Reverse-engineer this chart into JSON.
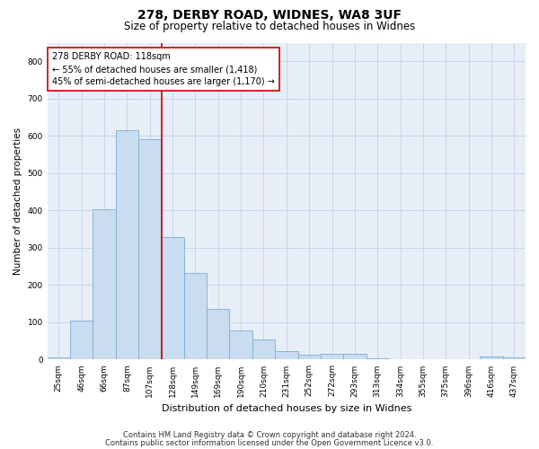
{
  "title_line1": "278, DERBY ROAD, WIDNES, WA8 3UF",
  "title_line2": "Size of property relative to detached houses in Widnes",
  "xlabel": "Distribution of detached houses by size in Widnes",
  "ylabel": "Number of detached properties",
  "footer_line1": "Contains HM Land Registry data © Crown copyright and database right 2024.",
  "footer_line2": "Contains public sector information licensed under the Open Government Licence v3.0.",
  "categories": [
    "25sqm",
    "46sqm",
    "66sqm",
    "87sqm",
    "107sqm",
    "128sqm",
    "149sqm",
    "169sqm",
    "190sqm",
    "210sqm",
    "231sqm",
    "252sqm",
    "272sqm",
    "293sqm",
    "313sqm",
    "334sqm",
    "355sqm",
    "375sqm",
    "396sqm",
    "416sqm",
    "437sqm"
  ],
  "values": [
    5,
    105,
    403,
    614,
    590,
    328,
    233,
    135,
    77,
    53,
    22,
    13,
    15,
    15,
    3,
    0,
    0,
    0,
    0,
    8,
    5
  ],
  "bar_color": "#c9dcf0",
  "bar_edge_color": "#7aadd4",
  "annotation_line1": "278 DERBY ROAD: 118sqm",
  "annotation_line2": "← 55% of detached houses are smaller (1,418)",
  "annotation_line3": "45% of semi-detached houses are larger (1,170) →",
  "annotation_box_color": "#ffffff",
  "annotation_box_edge": "#cc0000",
  "vline_color": "#cc0000",
  "ylim": [
    0,
    850
  ],
  "yticks": [
    0,
    100,
    200,
    300,
    400,
    500,
    600,
    700,
    800
  ],
  "grid_color": "#c8d4e8",
  "background_color": "#e8eef8",
  "title1_fontsize": 10,
  "title2_fontsize": 8.5,
  "xlabel_fontsize": 8,
  "ylabel_fontsize": 7.5,
  "tick_fontsize": 6.5,
  "annotation_fontsize": 7,
  "footer_fontsize": 6
}
